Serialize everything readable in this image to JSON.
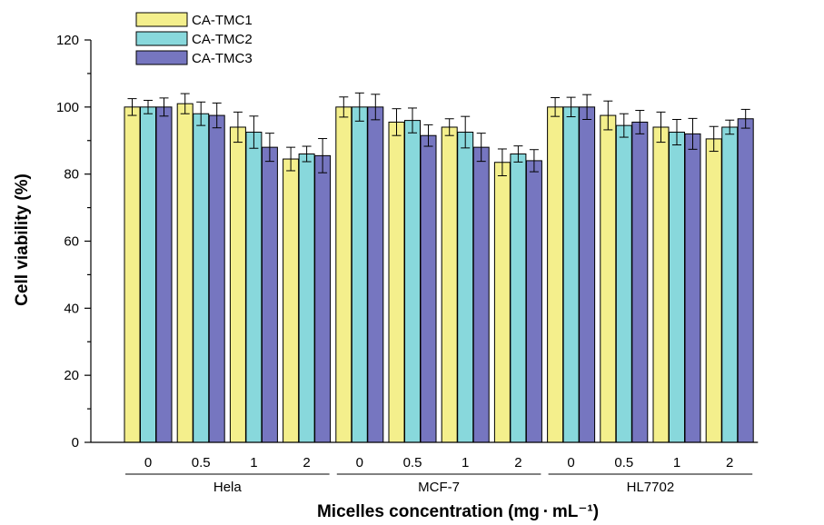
{
  "chart_data": {
    "type": "bar",
    "title": "",
    "xlabel": "Micelles concentration (mg · mL⁻¹)",
    "ylabel": "Cell viability (%)",
    "ylim": [
      0,
      120
    ],
    "yticks": [
      0,
      20,
      40,
      60,
      80,
      100,
      120
    ],
    "legend_position": "top-left",
    "grid": false,
    "error_bars": true,
    "groups": [
      {
        "name": "Hela",
        "categories": [
          "0",
          "0.5",
          "1",
          "2"
        ]
      },
      {
        "name": "MCF-7",
        "categories": [
          "0",
          "0.5",
          "1",
          "2"
        ]
      },
      {
        "name": "HL7702",
        "categories": [
          "0",
          "0.5",
          "1",
          "2"
        ]
      }
    ],
    "series": [
      {
        "name": "CA-TMC1",
        "color": "#f4ef8c",
        "values": [
          100,
          101,
          94,
          84.5,
          100,
          95.5,
          94,
          83.5,
          100,
          97.5,
          94,
          90.5
        ],
        "errors": [
          2.5,
          3,
          4.5,
          3.5,
          3,
          4,
          2.5,
          4,
          2.8,
          4.3,
          4.5,
          3.7
        ]
      },
      {
        "name": "CA-TMC2",
        "color": "#88d8dc",
        "values": [
          100,
          98,
          92.5,
          86,
          100,
          96,
          92.5,
          86,
          100,
          94.5,
          92.5,
          94
        ],
        "errors": [
          2,
          3.5,
          4.8,
          2.3,
          4.2,
          3.7,
          4.7,
          2.4,
          2.9,
          3.5,
          3.8,
          2.1
        ]
      },
      {
        "name": "CA-TMC3",
        "color": "#7676c0",
        "values": [
          100,
          97.5,
          88,
          85.5,
          100,
          91.5,
          88,
          84,
          100,
          95.5,
          92,
          96.5
        ],
        "errors": [
          2.7,
          3.7,
          4.2,
          5.1,
          3.8,
          3.2,
          4.2,
          3.3,
          3.7,
          3.5,
          4.6,
          2.8
        ]
      }
    ]
  }
}
